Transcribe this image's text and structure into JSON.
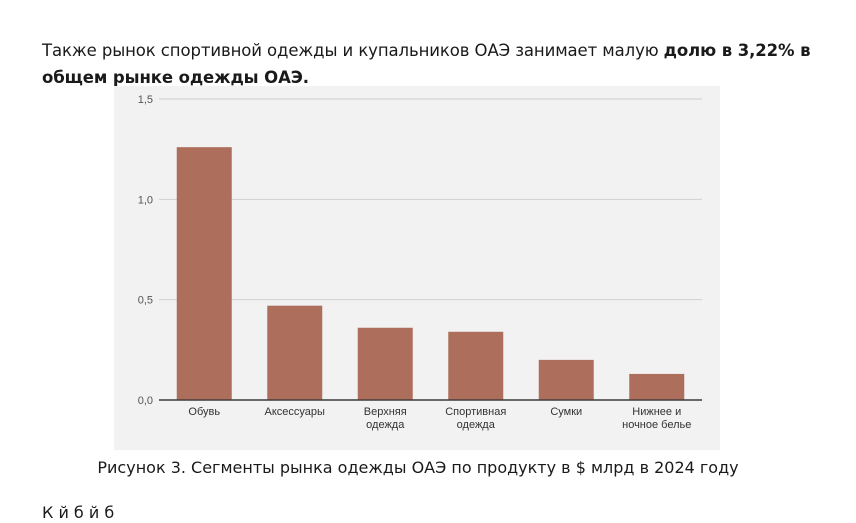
{
  "paragraph": {
    "text": "Также рынок спортивной одежды и купальников ОАЭ занимает малую ",
    "bold": "долю в 3,22% в общем рынке одежды ОАЭ",
    "end": "."
  },
  "chart_data": {
    "type": "bar",
    "categories": [
      "Обувь",
      "Аксессуары",
      "Верхняя одежда",
      "Спортивная одежда",
      "Сумки",
      "Нижнее и ночное белье"
    ],
    "category_lines": [
      [
        "Обувь"
      ],
      [
        "Аксессуары"
      ],
      [
        "Верхняя",
        "одежда"
      ],
      [
        "Спортивная",
        "одежда"
      ],
      [
        "Сумки"
      ],
      [
        "Нижнее и",
        "ночное белье"
      ]
    ],
    "values": [
      1.26,
      0.47,
      0.36,
      0.34,
      0.2,
      0.13
    ],
    "ylim": [
      0,
      1.5
    ],
    "yticks": [
      0,
      0.5,
      1.0,
      1.5
    ],
    "ytick_labels": [
      "0,0",
      "0,5",
      "1,0",
      "1,5"
    ],
    "grid": true,
    "bar_color": "#ad6f5b",
    "gridline_color": "#cfcfcf",
    "background": "#f2f2f2"
  },
  "caption": "Рисунок 3. Сегменты рынка одежды ОАЭ по продукту в $ млрд в 2024 году",
  "next_line": "К                       й       б       й     б"
}
